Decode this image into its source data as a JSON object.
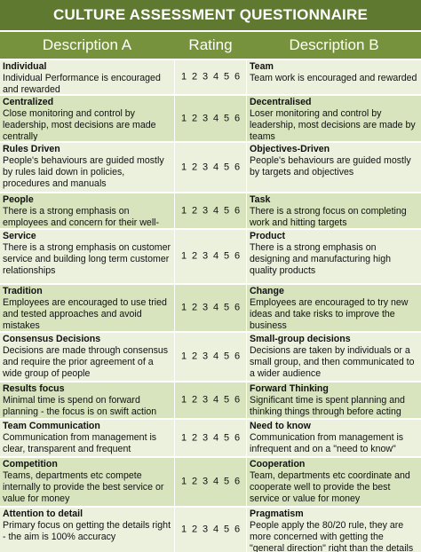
{
  "title": "CULTURE ASSESSMENT QUESTIONNAIRE",
  "headers": {
    "a": "Description A",
    "rating": "Rating",
    "b": "Description B"
  },
  "rating_scale": [
    "1",
    "2",
    "3",
    "4",
    "5",
    "6"
  ],
  "rows": [
    {
      "a_title": "Individual",
      "a_desc": "Individual Performance is encouraged and rewarded",
      "b_title": "Team",
      "b_desc": "Team work is encouraged and rewarded"
    },
    {
      "a_title": "Centralized",
      "a_desc": "Close monitoring and control by leadership, most decisions are made centrally",
      "b_title": "Decentralised",
      "b_desc": "Loser monitoring and control by leadership, most decisions are made by teams"
    },
    {
      "a_title": "Rules Driven",
      "a_desc": "People's behaviours are guided mostly by rules laid down in policies, procedures and manuals",
      "b_title": "Objectives-Driven",
      "b_desc": "People's behaviours are guided mostly by targets and objectives"
    },
    {
      "a_title": "People",
      "a_desc": "There is a strong emphasis on employees and concern for their well-being",
      "b_title": "Task",
      "b_desc": "There is a strong focus on completing work and hitting targets"
    },
    {
      "a_title": "Service",
      "a_desc": "There is a strong emphasis on customer service and building long term customer relationships",
      "b_title": "Product",
      "b_desc": "There is a strong emphasis on designing and manufacturing high quality products"
    },
    {
      "a_title": "Tradition",
      "a_desc": "Employees are encouraged to use tried and tested approaches and avoid mistakes",
      "b_title": "Change",
      "b_desc": "Employees are encouraged to try new ideas and take risks to improve the business"
    },
    {
      "a_title": "Consensus Decisions",
      "a_desc": "Decisions are made through consensus and require the prior agreement of a wide group of people",
      "b_title": "Small-group decisions",
      "b_desc": "Decisions are taken by individuals or a small group, and then communicated to a wider audience"
    },
    {
      "a_title": "Results focus",
      "a_desc": "Minimal time is spend on forward planning - the focus is on swift action",
      "b_title": "Forward Thinking",
      "b_desc": "Significant time is spent planning and thinking things through before acting"
    },
    {
      "a_title": "Team Communication",
      "a_desc": "Communication from management is clear, transparent and frequent",
      "b_title": "Need to know",
      "b_desc": "Communication from management is infrequent and on a \"need to know\" basis"
    },
    {
      "a_title": "Competition",
      "a_desc": "Teams, departments etc compete internally to provide the best service or value for money",
      "b_title": "Cooperation",
      "b_desc": "Team, departments etc coordinate and cooperate well to provide the best service or value for money"
    },
    {
      "a_title": "Attention to detail",
      "a_desc": "Primary focus on getting the details right - the aim is 100% accuracy",
      "b_title": "Pragmatism",
      "b_desc": "People apply the 80/20 rule, they are more concerned with getting the \"general direction\" right than the details"
    }
  ]
}
